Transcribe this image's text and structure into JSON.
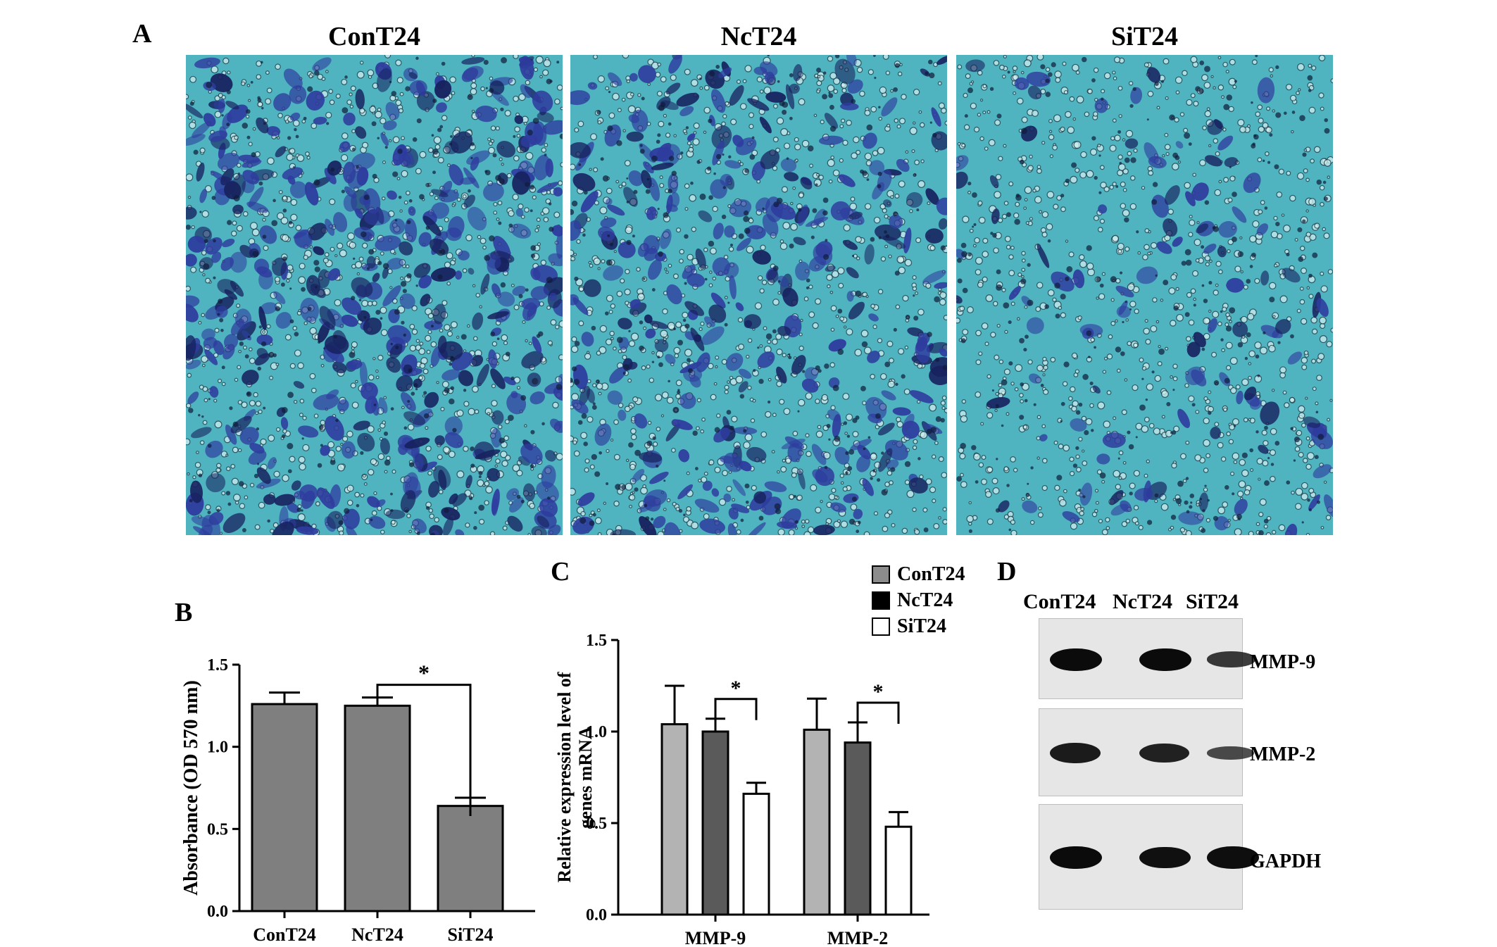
{
  "panel_a": {
    "letter": "A",
    "images": [
      {
        "title": "ConT24",
        "density": 1.0
      },
      {
        "title": "NcT24",
        "density": 0.7
      },
      {
        "title": "SiT24",
        "density": 0.25
      }
    ],
    "colors": {
      "background": "#4fb4c0",
      "cell": "#2e3c9e",
      "dark": "#17225f"
    }
  },
  "panel_b": {
    "letter": "B",
    "chart_data": {
      "type": "bar",
      "categories": [
        "ConT24",
        "NcT24",
        "SiT24"
      ],
      "values": [
        1.26,
        1.25,
        0.64
      ],
      "errors": [
        0.07,
        0.05,
        0.05
      ],
      "ylabel": "Absorbance (OD 570 nm)",
      "ylim": [
        0,
        1.5
      ],
      "yticks": [
        "0.0",
        "0.5",
        "1.0",
        "1.5"
      ],
      "significance": [
        {
          "from": 1,
          "to": 2,
          "label": "*"
        }
      ],
      "bar_color": "#7f7f7f"
    }
  },
  "panel_c": {
    "letter": "C",
    "chart_data": {
      "type": "bar",
      "categories": [
        "MMP-9",
        "MMP-2"
      ],
      "series": [
        {
          "name": "ConT24",
          "values": [
            1.04,
            1.01
          ],
          "errors": [
            0.21,
            0.17
          ],
          "color": "#b3b3b3"
        },
        {
          "name": "NcT24",
          "values": [
            1.0,
            0.94
          ],
          "errors": [
            0.07,
            0.11
          ],
          "color": "#5a5a5a"
        },
        {
          "name": "SiT24",
          "values": [
            0.66,
            0.48
          ],
          "errors": [
            0.06,
            0.08
          ],
          "color": "#ffffff"
        }
      ],
      "legend_colors": [
        "#8c8c8c",
        "#000000",
        "#ffffff"
      ],
      "ylabel_line1": "Relative expression level of",
      "ylabel_line2": "genes mRNA",
      "ylim": [
        0,
        1.5
      ],
      "yticks": [
        "0.0",
        "0.5",
        "1.0",
        "1.5"
      ],
      "significance": [
        {
          "group": 0,
          "label": "*"
        },
        {
          "group": 1,
          "label": "*"
        }
      ],
      "legend_placement": "top-right"
    }
  },
  "panel_d": {
    "letter": "D",
    "lanes": [
      "ConT24",
      "NcT24",
      "SiT24"
    ],
    "blots": [
      {
        "label": "MMP-9",
        "band_strength": [
          1.0,
          1.0,
          0.55
        ]
      },
      {
        "label": "MMP-2",
        "band_strength": [
          0.85,
          0.78,
          0.38
        ]
      },
      {
        "label": "GAPDH",
        "band_strength": [
          1.0,
          0.95,
          0.98
        ]
      }
    ]
  }
}
